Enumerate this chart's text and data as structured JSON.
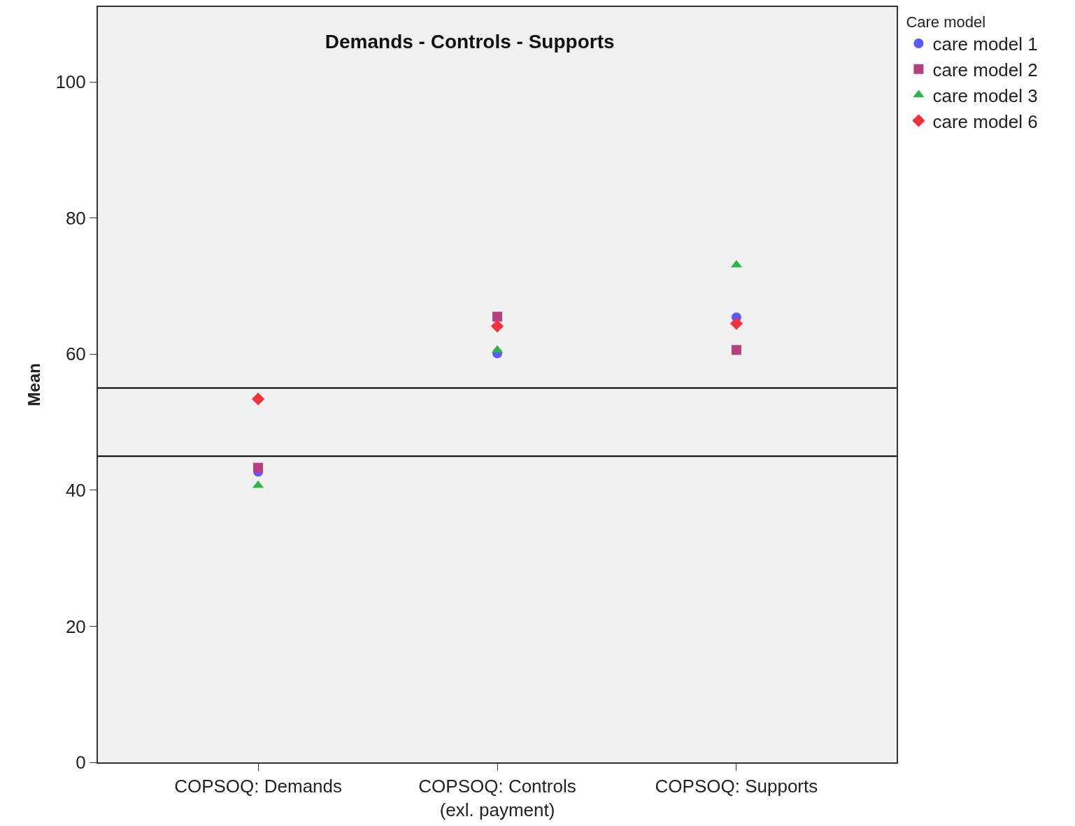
{
  "chart_data": {
    "type": "scatter",
    "title": "Demands - Controls - Supports",
    "ylabel": "Mean",
    "legend_title": "Care model",
    "categories": [
      "COPSOQ: Demands",
      "COPSOQ: Controls\n(exl. payment)",
      "COPSOQ: Supports"
    ],
    "series": [
      {
        "name": "care model 1",
        "color": "#5a5aff",
        "marker": "circle",
        "values": [
          42.7,
          60.1,
          65.4
        ]
      },
      {
        "name": "care model 2",
        "color": "#b5407f",
        "marker": "square",
        "values": [
          43.3,
          65.5,
          60.6
        ]
      },
      {
        "name": "care model 3",
        "color": "#2eb24a",
        "marker": "triangle",
        "values": [
          40.7,
          60.6,
          73.1
        ]
      },
      {
        "name": "care model 6",
        "color": "#f0323c",
        "marker": "diamond",
        "values": [
          53.4,
          64.1,
          64.5
        ]
      }
    ],
    "ylim": [
      0,
      111
    ],
    "yticks": [
      0,
      20,
      40,
      60,
      80,
      100
    ],
    "grid": false,
    "legend": "top right",
    "ref_lines": [
      {
        "axis": "y",
        "value": 55,
        "color": "#000000"
      },
      {
        "axis": "y",
        "value": 45,
        "color": "#000000"
      }
    ]
  }
}
